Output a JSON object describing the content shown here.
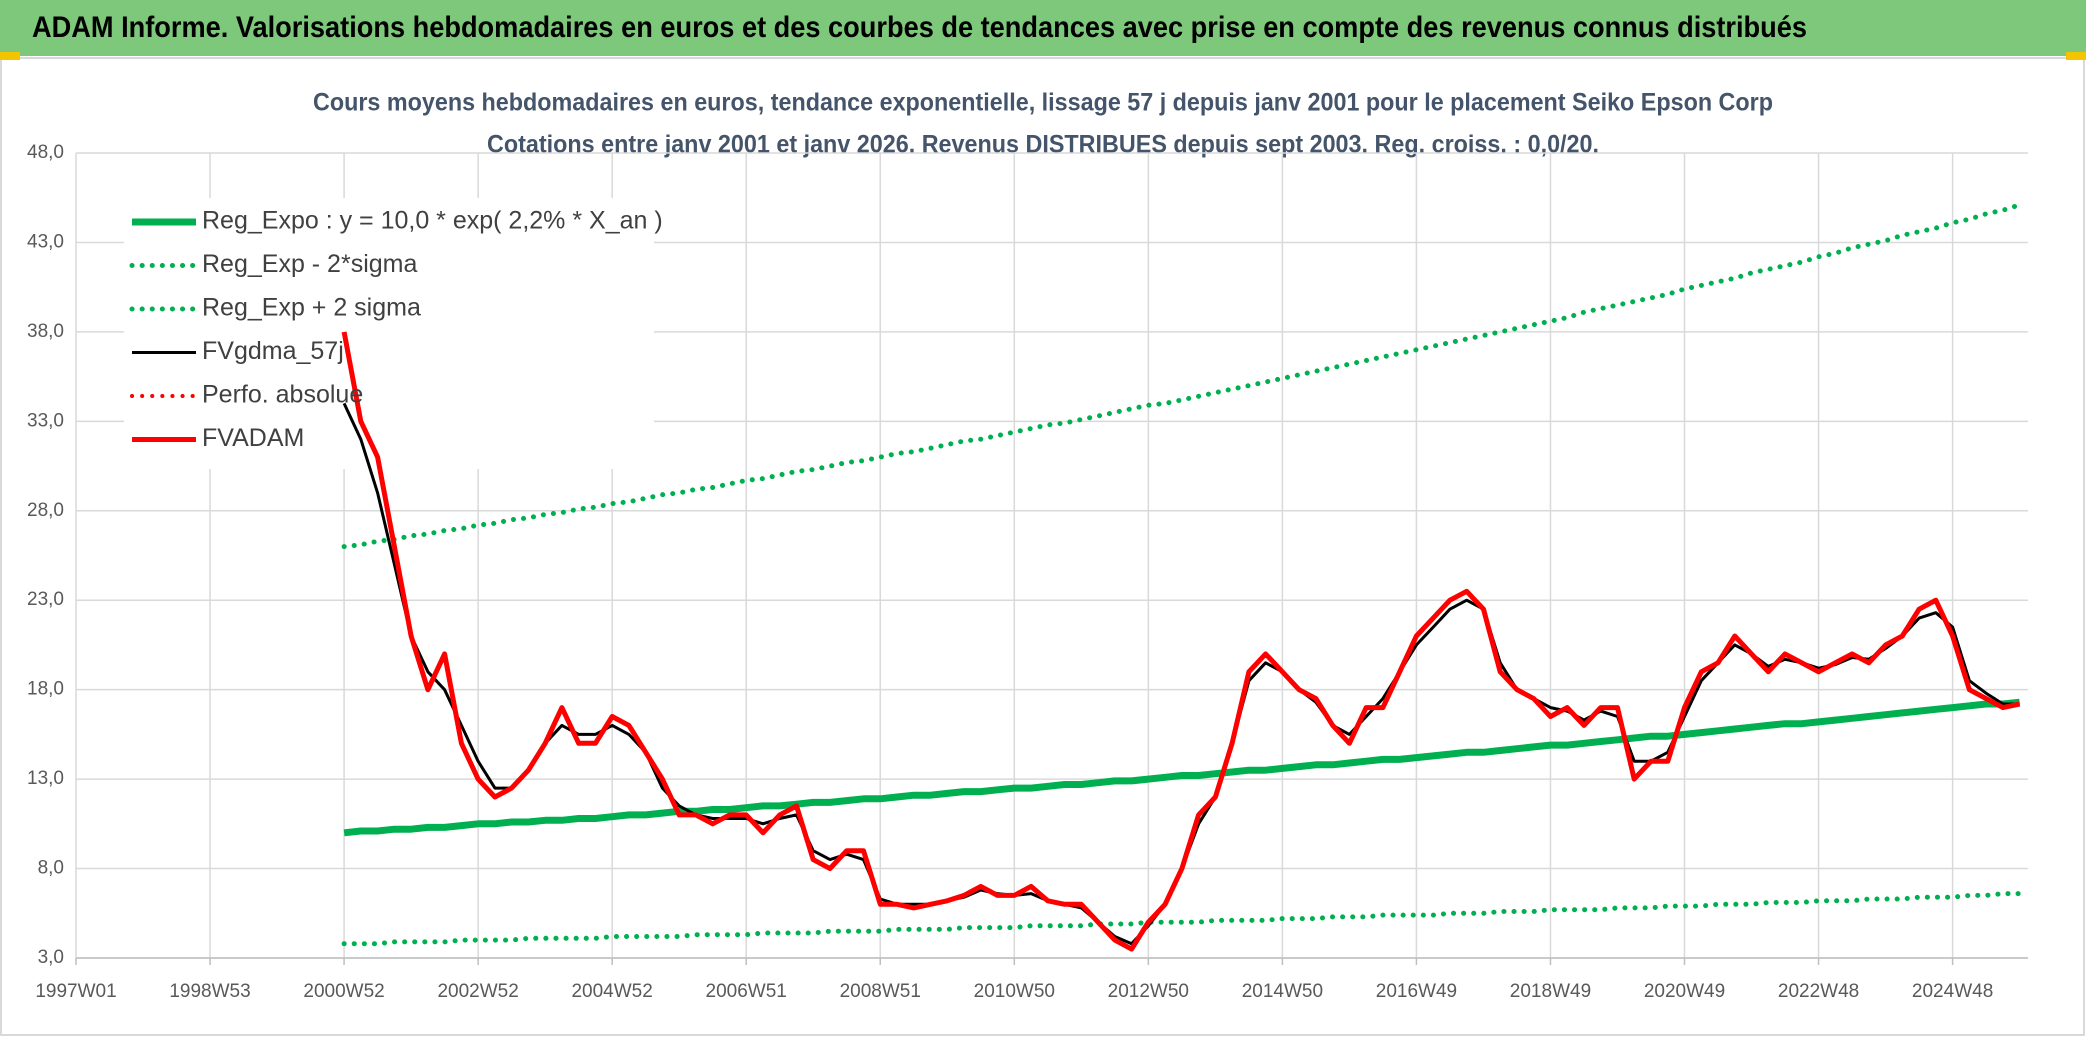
{
  "header": {
    "title": "ADAM Informe. Valorisations hebdomadaires en euros et des courbes de tendances avec prise en compte des revenus connus distribués"
  },
  "chart_data": {
    "type": "line",
    "title": "Cours moyens hebdomadaires en euros, tendance exponentielle, lissage 57 j depuis janv 2001 pour le placement Seiko Epson Corp",
    "subtitle": "Cotations entre janv 2001 et janv 2026. Revenus DISTRIBUES depuis sept 2003. Reg. croiss. : 0,0/20.",
    "categories": [
      "1997W01",
      null,
      null,
      null,
      null,
      null,
      null,
      null,
      "1998W53",
      null,
      null,
      null,
      null,
      null,
      null,
      null,
      "2000W52",
      null,
      null,
      null,
      null,
      null,
      null,
      null,
      "2002W52",
      null,
      null,
      null,
      null,
      null,
      null,
      null,
      "2004W52",
      null,
      null,
      null,
      null,
      null,
      null,
      null,
      "2006W51",
      null,
      null,
      null,
      null,
      null,
      null,
      null,
      "2008W51",
      null,
      null,
      null,
      null,
      null,
      null,
      null,
      "2010W50",
      null,
      null,
      null,
      null,
      null,
      null,
      null,
      "2012W50",
      null,
      null,
      null,
      null,
      null,
      null,
      null,
      "2014W50",
      null,
      null,
      null,
      null,
      null,
      null,
      null,
      "2016W49",
      null,
      null,
      null,
      null,
      null,
      null,
      null,
      "2018W49",
      null,
      null,
      null,
      null,
      null,
      null,
      null,
      "2020W49",
      null,
      null,
      null,
      null,
      null,
      null,
      null,
      "2022W48",
      null,
      null,
      null,
      null,
      null,
      null,
      null,
      "2024W48",
      null,
      null,
      null,
      null
    ],
    "series": [
      {
        "name": "Reg_Expo : y = 10,0 * exp( 2,2% *  X_an )",
        "color": "#00b050",
        "style": "solid",
        "values": [
          null,
          null,
          null,
          null,
          null,
          null,
          null,
          null,
          null,
          null,
          null,
          null,
          null,
          null,
          null,
          null,
          10.0,
          10.1,
          10.1,
          10.2,
          10.2,
          10.3,
          10.3,
          10.4,
          10.5,
          10.5,
          10.6,
          10.6,
          10.7,
          10.7,
          10.8,
          10.8,
          10.9,
          11.0,
          11.0,
          11.1,
          11.2,
          11.2,
          11.3,
          11.3,
          11.4,
          11.5,
          11.5,
          11.6,
          11.7,
          11.7,
          11.8,
          11.9,
          11.9,
          12.0,
          12.1,
          12.1,
          12.2,
          12.3,
          12.3,
          12.4,
          12.5,
          12.5,
          12.6,
          12.7,
          12.7,
          12.8,
          12.9,
          12.9,
          13.0,
          13.1,
          13.2,
          13.2,
          13.3,
          13.4,
          13.5,
          13.5,
          13.6,
          13.7,
          13.8,
          13.8,
          13.9,
          14.0,
          14.1,
          14.1,
          14.2,
          14.3,
          14.4,
          14.5,
          14.5,
          14.6,
          14.7,
          14.8,
          14.9,
          14.9,
          15.0,
          15.1,
          15.2,
          15.3,
          15.4,
          15.4,
          15.5,
          15.6,
          15.7,
          15.8,
          15.9,
          16.0,
          16.1,
          16.1,
          16.2,
          16.3,
          16.4,
          16.5,
          16.6,
          16.7,
          16.8,
          16.9,
          17.0,
          17.1,
          17.2,
          17.2,
          17.3
        ]
      },
      {
        "name": "Reg_Exp - 2*sigma",
        "color": "#00b050",
        "style": "dotted",
        "values": [
          null,
          null,
          null,
          null,
          null,
          null,
          null,
          null,
          null,
          null,
          null,
          null,
          null,
          null,
          null,
          null,
          3.8,
          3.8,
          3.8,
          3.9,
          3.9,
          3.9,
          3.9,
          4.0,
          4.0,
          4.0,
          4.0,
          4.1,
          4.1,
          4.1,
          4.1,
          4.1,
          4.2,
          4.2,
          4.2,
          4.2,
          4.2,
          4.3,
          4.3,
          4.3,
          4.3,
          4.4,
          4.4,
          4.4,
          4.4,
          4.5,
          4.5,
          4.5,
          4.5,
          4.6,
          4.6,
          4.6,
          4.6,
          4.7,
          4.7,
          4.7,
          4.7,
          4.8,
          4.8,
          4.8,
          4.8,
          4.9,
          4.9,
          4.9,
          5.0,
          5.0,
          5.0,
          5.0,
          5.1,
          5.1,
          5.1,
          5.1,
          5.2,
          5.2,
          5.2,
          5.3,
          5.3,
          5.3,
          5.4,
          5.4,
          5.4,
          5.4,
          5.5,
          5.5,
          5.5,
          5.6,
          5.6,
          5.6,
          5.7,
          5.7,
          5.7,
          5.7,
          5.8,
          5.8,
          5.8,
          5.9,
          5.9,
          5.9,
          6.0,
          6.0,
          6.0,
          6.1,
          6.1,
          6.1,
          6.2,
          6.2,
          6.2,
          6.3,
          6.3,
          6.3,
          6.4,
          6.4,
          6.4,
          6.5,
          6.5,
          6.6,
          6.6
        ]
      },
      {
        "name": "Reg_Exp + 2 sigma",
        "color": "#00b050",
        "style": "dotted",
        "values": [
          null,
          null,
          null,
          null,
          null,
          null,
          null,
          null,
          null,
          null,
          null,
          null,
          null,
          null,
          null,
          null,
          26.0,
          26.1,
          26.3,
          26.4,
          26.6,
          26.7,
          26.9,
          27.0,
          27.2,
          27.3,
          27.5,
          27.6,
          27.8,
          27.9,
          28.1,
          28.2,
          28.4,
          28.5,
          28.7,
          28.9,
          29.0,
          29.2,
          29.3,
          29.5,
          29.7,
          29.8,
          30.0,
          30.2,
          30.3,
          30.5,
          30.7,
          30.8,
          31.0,
          31.2,
          31.3,
          31.5,
          31.7,
          31.9,
          32.0,
          32.2,
          32.4,
          32.6,
          32.8,
          32.9,
          33.1,
          33.3,
          33.5,
          33.7,
          33.9,
          34.0,
          34.2,
          34.4,
          34.6,
          34.8,
          35.0,
          35.2,
          35.4,
          35.6,
          35.8,
          36.0,
          36.2,
          36.4,
          36.6,
          36.8,
          37.0,
          37.2,
          37.4,
          37.6,
          37.8,
          38.0,
          38.2,
          38.4,
          38.6,
          38.8,
          39.1,
          39.3,
          39.5,
          39.7,
          39.9,
          40.1,
          40.4,
          40.6,
          40.8,
          41.0,
          41.3,
          41.5,
          41.7,
          41.9,
          42.2,
          42.4,
          42.7,
          42.9,
          43.1,
          43.4,
          43.6,
          43.8,
          44.1,
          44.3,
          44.6,
          44.8,
          45.1
        ]
      },
      {
        "name": "FVgdma_57j",
        "color": "#000000",
        "style": "solid",
        "values": [
          null,
          null,
          null,
          null,
          null,
          null,
          null,
          null,
          null,
          null,
          null,
          null,
          null,
          null,
          null,
          null,
          34,
          32,
          29,
          25,
          21,
          19,
          18,
          16,
          14,
          12.5,
          12.5,
          13.5,
          15,
          16,
          15.5,
          15.5,
          16,
          15.5,
          14.5,
          12.5,
          11.5,
          11,
          10.8,
          10.8,
          10.8,
          10.5,
          10.8,
          11,
          9,
          8.5,
          8.8,
          8.5,
          6.3,
          6,
          6,
          6,
          6.2,
          6.4,
          6.8,
          6.6,
          6.5,
          6.6,
          6.2,
          6,
          5.8,
          5,
          4.2,
          3.8,
          4.8,
          6,
          8,
          10.5,
          12,
          15,
          18.5,
          19.5,
          19,
          18,
          17.3,
          16,
          15.5,
          16.5,
          17.5,
          19,
          20.5,
          21.5,
          22.5,
          23,
          22.5,
          19.5,
          18,
          17.5,
          17,
          16.8,
          16.3,
          16.8,
          16.5,
          14,
          14,
          14.5,
          16.5,
          18.5,
          19.5,
          20.5,
          20,
          19.3,
          19.7,
          19.5,
          19.2,
          19.4,
          19.8,
          19.7,
          20.3,
          21,
          22,
          22.3,
          21.5,
          18.5,
          17.8,
          17.2,
          17.2
        ]
      },
      {
        "name": "Perfo. absolue",
        "color": "#ff0000",
        "style": "dotted"
      },
      {
        "name": "FVADAM",
        "color": "#ff0000",
        "style": "solid",
        "values": [
          null,
          null,
          null,
          null,
          null,
          null,
          null,
          null,
          null,
          null,
          null,
          null,
          null,
          null,
          null,
          null,
          38,
          33,
          31,
          26,
          21,
          18,
          20,
          15,
          13,
          12,
          12.5,
          13.5,
          15,
          17,
          15,
          15,
          16.5,
          16,
          14.5,
          13,
          11,
          11,
          10.5,
          11,
          11,
          10,
          11,
          11.5,
          8.5,
          8,
          9,
          9,
          6,
          6,
          5.8,
          6,
          6.2,
          6.5,
          7,
          6.5,
          6.5,
          7,
          6.2,
          6,
          6,
          5,
          4,
          3.5,
          5,
          6,
          8,
          11,
          12,
          15,
          19,
          20,
          19,
          18,
          17.5,
          16,
          15,
          17,
          17,
          19,
          21,
          22,
          23,
          23.5,
          22.5,
          19,
          18,
          17.5,
          16.5,
          17,
          16,
          17,
          17,
          13,
          14,
          14,
          17,
          19,
          19.5,
          21,
          20,
          19,
          20,
          19.5,
          19,
          19.5,
          20,
          19.5,
          20.5,
          21,
          22.5,
          23,
          21,
          18,
          17.5,
          17,
          17.2
        ]
      }
    ],
    "ylim": [
      3,
      48
    ],
    "yticks": [
      {
        "value": 3,
        "label": "3,0"
      },
      {
        "value": 8,
        "label": "8,0"
      },
      {
        "value": 13,
        "label": "13,0"
      },
      {
        "value": 18,
        "label": "18,0"
      },
      {
        "value": 23,
        "label": "23,0"
      },
      {
        "value": 28,
        "label": "28,0"
      },
      {
        "value": 33,
        "label": "33,0"
      },
      {
        "value": 38,
        "label": "38,0"
      },
      {
        "value": 43,
        "label": "43,0"
      },
      {
        "value": 48,
        "label": "48,0"
      }
    ],
    "grid": true,
    "legend": "top-left"
  }
}
